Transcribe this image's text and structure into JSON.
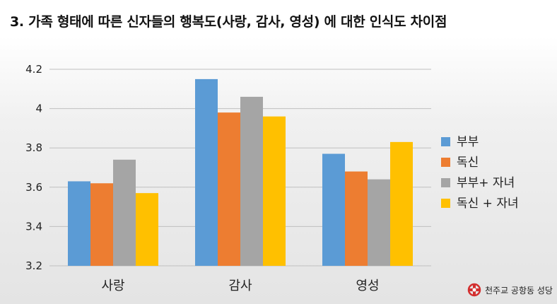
{
  "title": "3. 가족 형태에 따른 신자들의 행복도(사랑, 감사, 영성) 에 대한 인식도 차이점",
  "logo_text": "천주교 공항동 성당",
  "chart_data": {
    "type": "bar",
    "categories": [
      "사랑",
      "감사",
      "영성"
    ],
    "series": [
      {
        "name": "부부",
        "color": "#5b9bd5",
        "values": [
          3.63,
          4.15,
          3.77
        ]
      },
      {
        "name": "독신",
        "color": "#ed7d31",
        "values": [
          3.62,
          3.98,
          3.68
        ]
      },
      {
        "name": "부부+ 자녀",
        "color": "#a5a5a5",
        "values": [
          3.74,
          4.06,
          3.64
        ]
      },
      {
        "name": "독신 + 자녀",
        "color": "#ffc000",
        "values": [
          3.57,
          3.96,
          3.83
        ]
      }
    ],
    "y_ticks": [
      "3.2",
      "3.4",
      "3.6",
      "3.8",
      "4",
      "4.2"
    ],
    "ylim": [
      3.2,
      4.2
    ],
    "grid": true,
    "legend_position": "right"
  }
}
